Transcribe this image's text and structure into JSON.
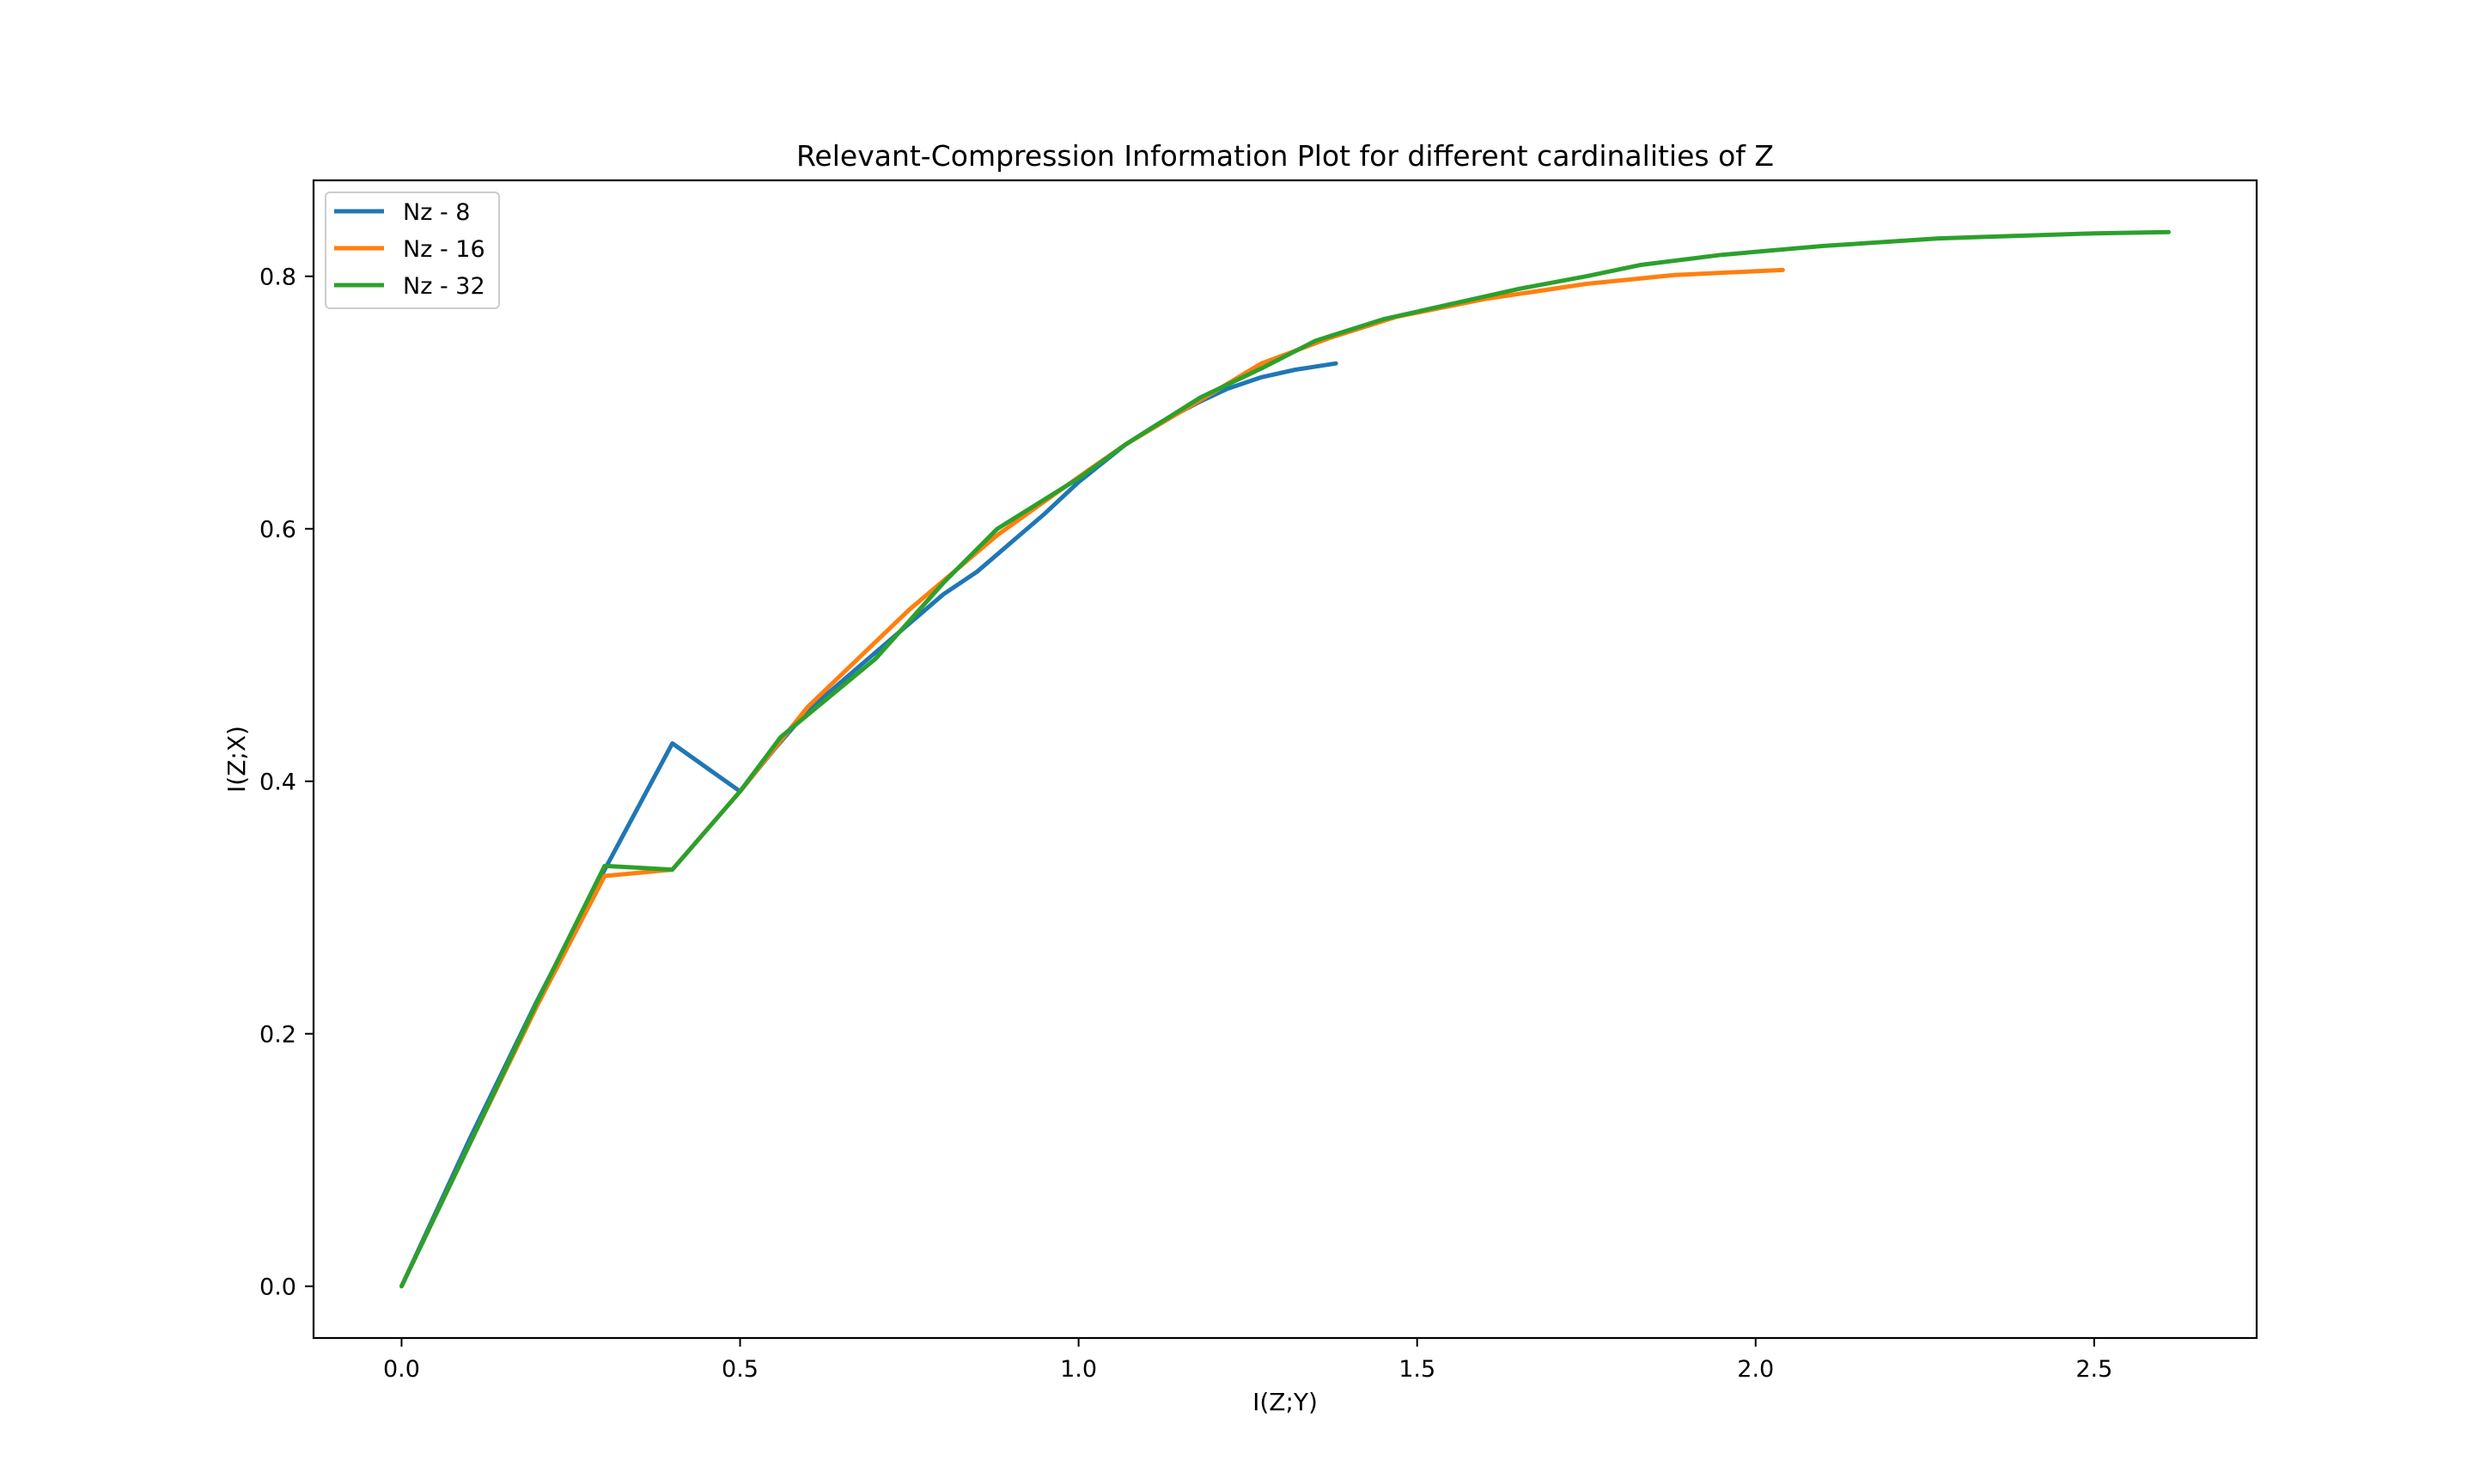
{
  "chart_data": {
    "type": "line",
    "title": "Relevant-Compression Information Plot for different cardinalities of Z",
    "xlabel": "I(Z;Y)",
    "ylabel": "I(Z;X)",
    "xlim": [
      -0.13,
      2.74
    ],
    "ylim": [
      -0.041,
      0.876
    ],
    "xticks": [
      0.0,
      0.5,
      1.0,
      1.5,
      2.0,
      2.5
    ],
    "yticks": [
      0.0,
      0.2,
      0.4,
      0.6,
      0.8
    ],
    "xtick_labels": [
      "0.0",
      "0.5",
      "1.0",
      "1.5",
      "2.0",
      "2.5"
    ],
    "ytick_labels": [
      "0.0",
      "0.2",
      "0.4",
      "0.6",
      "0.8"
    ],
    "grid": false,
    "legend_position": "upper-left",
    "colors": {
      "axes": "#000000",
      "legend_border": "#cccccc"
    },
    "series": [
      {
        "name": "Nz - 8",
        "color": "#1f77b4",
        "x": [
          0.0,
          0.1,
          0.2,
          0.3,
          0.4,
          0.5,
          0.55,
          0.6,
          0.7,
          0.8,
          0.85,
          0.9,
          0.95,
          1.0,
          1.07,
          1.12,
          1.18,
          1.22,
          1.27,
          1.32,
          1.38
        ],
        "y": [
          0.0,
          0.116,
          0.226,
          0.33,
          0.43,
          0.392,
          0.425,
          0.456,
          0.502,
          0.548,
          0.566,
          0.589,
          0.612,
          0.637,
          0.667,
          0.684,
          0.701,
          0.711,
          0.72,
          0.726,
          0.731
        ]
      },
      {
        "name": "Nz - 16",
        "color": "#ff7f0e",
        "x": [
          0.0,
          0.1,
          0.2,
          0.3,
          0.4,
          0.5,
          0.6,
          0.75,
          0.88,
          1.0,
          1.07,
          1.18,
          1.27,
          1.37,
          1.47,
          1.6,
          1.75,
          1.88,
          1.96,
          2.04
        ],
        "y": [
          0.0,
          0.112,
          0.222,
          0.325,
          0.33,
          0.392,
          0.459,
          0.536,
          0.595,
          0.641,
          0.667,
          0.702,
          0.731,
          0.751,
          0.768,
          0.782,
          0.794,
          0.801,
          0.803,
          0.805
        ],
        "note": ""
      },
      {
        "name": "Nz - 32",
        "color": "#2ca02c",
        "x": [
          0.0,
          0.1,
          0.2,
          0.3,
          0.4,
          0.5,
          0.56,
          0.7,
          0.8,
          0.88,
          1.0,
          1.07,
          1.18,
          1.27,
          1.35,
          1.45,
          1.55,
          1.65,
          1.75,
          1.83,
          1.95,
          2.1,
          2.27,
          2.5,
          2.61
        ],
        "y": [
          0.0,
          0.112,
          0.225,
          0.333,
          0.33,
          0.392,
          0.435,
          0.497,
          0.557,
          0.6,
          0.64,
          0.667,
          0.704,
          0.727,
          0.749,
          0.766,
          0.778,
          0.79,
          0.8,
          0.809,
          0.817,
          0.824,
          0.83,
          0.834,
          0.835
        ]
      }
    ]
  }
}
